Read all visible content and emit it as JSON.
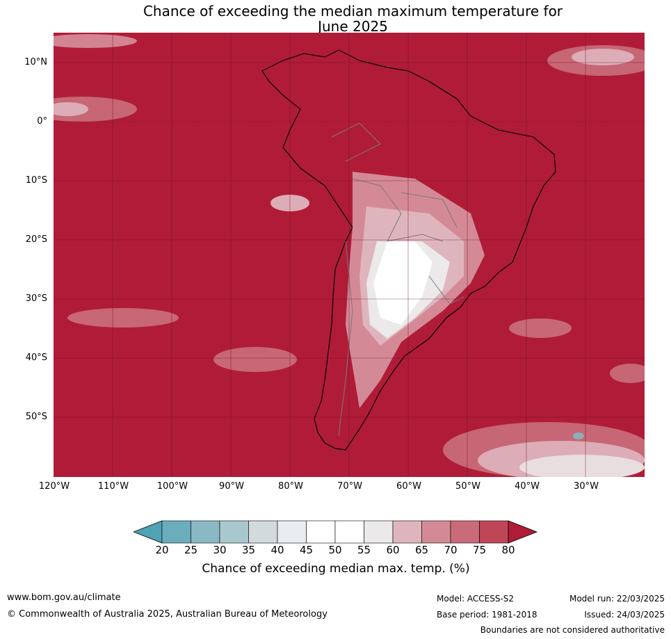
{
  "title": {
    "line1": "Chance of exceeding the median maximum temperature for",
    "line2": "June 2025"
  },
  "map": {
    "lat_labels": [
      "10°N",
      "0°",
      "10°S",
      "20°S",
      "30°S",
      "40°S",
      "50°S"
    ],
    "lon_labels": [
      "120°W",
      "110°W",
      "100°W",
      "90°W",
      "80°W",
      "70°W",
      "60°W",
      "50°W",
      "40°W",
      "30°W"
    ],
    "dominant_color": "#b01c38"
  },
  "colorbar": {
    "ticks": [
      "20",
      "25",
      "30",
      "35",
      "40",
      "45",
      "50",
      "55",
      "60",
      "65",
      "70",
      "75",
      "80"
    ],
    "colors": [
      "#4fa3b3",
      "#6aaebc",
      "#8ab8c3",
      "#a8c8ce",
      "#d2dadc",
      "#e8eef0",
      "#ffffff",
      "#ffffff",
      "#ebe9ea",
      "#dfb5bd",
      "#d48a96",
      "#c96b78",
      "#bf4656",
      "#b01c38"
    ],
    "label": "Chance of exceeding median max. temp. (%)"
  },
  "footer": {
    "website": "www.bom.gov.au/climate",
    "copyright": "© Commonwealth of Australia 2025, Australian Bureau of Meteorology",
    "model": "Model: ACCESS-S2",
    "base_period": "Base period: 1981-2018",
    "model_run": "Model run: 22/03/2025",
    "issued": "Issued: 24/03/2025",
    "disclaimer": "Boundaries are not considered authoritative"
  }
}
